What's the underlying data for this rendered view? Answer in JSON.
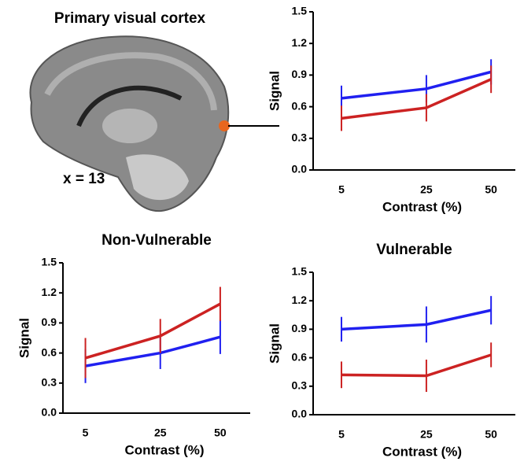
{
  "panel_title": "Primary visual cortex",
  "slice_label": "x = 13",
  "chart_data": [
    {
      "type": "line",
      "categories": [
        "5",
        "25",
        "50"
      ],
      "ylabel": "Signal",
      "xlabel": "Contrast (%)",
      "ylim": [
        0,
        1.5
      ],
      "yticks": [
        {
          "value": 0,
          "label": "0.0"
        },
        {
          "value": 0.3,
          "label": "0.3"
        },
        {
          "value": 0.6,
          "label": "0.6"
        },
        {
          "value": 0.9,
          "label": "0.9"
        },
        {
          "value": 1.2,
          "label": "1.2"
        },
        {
          "value": 1.5,
          "label": "1.5"
        }
      ],
      "series": [
        {
          "color": "#2020f0",
          "values": [
            0.68,
            0.77,
            0.93
          ],
          "errors": [
            0.12,
            0.13,
            0.12
          ]
        },
        {
          "color": "#cc2222",
          "values": [
            0.49,
            0.59,
            0.86
          ],
          "errors": [
            0.12,
            0.13,
            0.13
          ]
        }
      ]
    },
    {
      "type": "line",
      "title": "Non-Vulnerable",
      "categories": [
        "5",
        "25",
        "50"
      ],
      "ylabel": "Signal",
      "xlabel": "Contrast (%)",
      "ylim": [
        0,
        1.5
      ],
      "yticks": [
        {
          "value": 0,
          "label": "0.0"
        },
        {
          "value": 0.3,
          "label": "0.3"
        },
        {
          "value": 0.6,
          "label": "0.6"
        },
        {
          "value": 0.9,
          "label": "0.9"
        },
        {
          "value": 1.2,
          "label": "1.2"
        },
        {
          "value": 1.5,
          "label": "1.5"
        }
      ],
      "series": [
        {
          "color": "#2020f0",
          "values": [
            0.47,
            0.6,
            0.76
          ],
          "errors": [
            0.17,
            0.16,
            0.17
          ]
        },
        {
          "color": "#cc2222",
          "values": [
            0.55,
            0.77,
            1.09
          ],
          "errors": [
            0.2,
            0.17,
            0.17
          ]
        }
      ]
    },
    {
      "type": "line",
      "title": "Vulnerable",
      "categories": [
        "5",
        "25",
        "50"
      ],
      "ylabel": "Signal",
      "xlabel": "Contrast (%)",
      "ylim": [
        0,
        1.5
      ],
      "yticks": [
        {
          "value": 0,
          "label": "0.0"
        },
        {
          "value": 0.3,
          "label": "0.3"
        },
        {
          "value": 0.6,
          "label": "0.6"
        },
        {
          "value": 0.9,
          "label": "0.9"
        },
        {
          "value": 1.2,
          "label": "1.2"
        },
        {
          "value": 1.5,
          "label": "1.5"
        }
      ],
      "series": [
        {
          "color": "#2020f0",
          "values": [
            0.9,
            0.95,
            1.1
          ],
          "errors": [
            0.13,
            0.19,
            0.15
          ]
        },
        {
          "color": "#cc2222",
          "values": [
            0.42,
            0.41,
            0.63
          ],
          "errors": [
            0.14,
            0.17,
            0.13
          ]
        }
      ]
    }
  ]
}
